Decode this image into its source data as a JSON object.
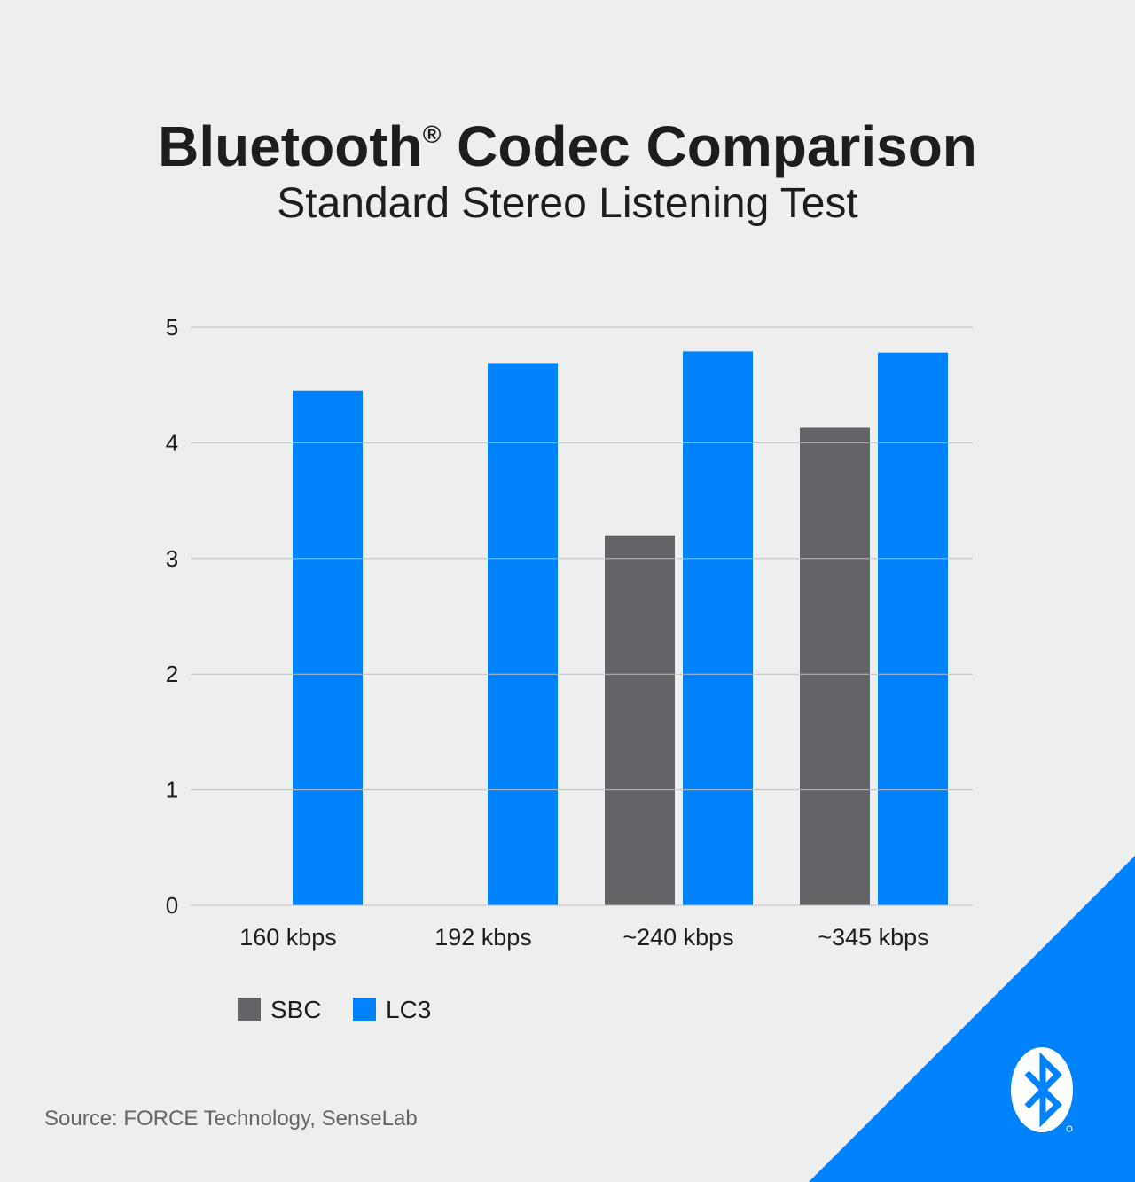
{
  "title": "Bluetooth",
  "title_mark": "®",
  "title_rest": " Codec Comparison",
  "subtitle": "Standard Stereo Listening Test",
  "source": "Source: FORCE Technology, SenseLab",
  "colors": {
    "SBC": "#636468",
    "LC3": "#0082fc",
    "background": "#eeeeee",
    "grid": "#bdbdbd"
  },
  "logo": "bluetooth-logo",
  "chart_data": {
    "type": "bar",
    "title": "Bluetooth® Codec Comparison",
    "subtitle": "Standard Stereo Listening Test",
    "categories": [
      "160 kbps",
      "192 kbps",
      "~240 kbps",
      "~345 kbps"
    ],
    "series": [
      {
        "name": "SBC",
        "values": [
          null,
          null,
          3.2,
          4.13
        ]
      },
      {
        "name": "LC3",
        "values": [
          4.45,
          4.69,
          4.79,
          4.78
        ]
      }
    ],
    "yticks": [
      "0",
      "1",
      "2",
      "3",
      "4",
      "5"
    ],
    "ylim": [
      0,
      5
    ],
    "grid": true,
    "legend": "bottom-left"
  }
}
